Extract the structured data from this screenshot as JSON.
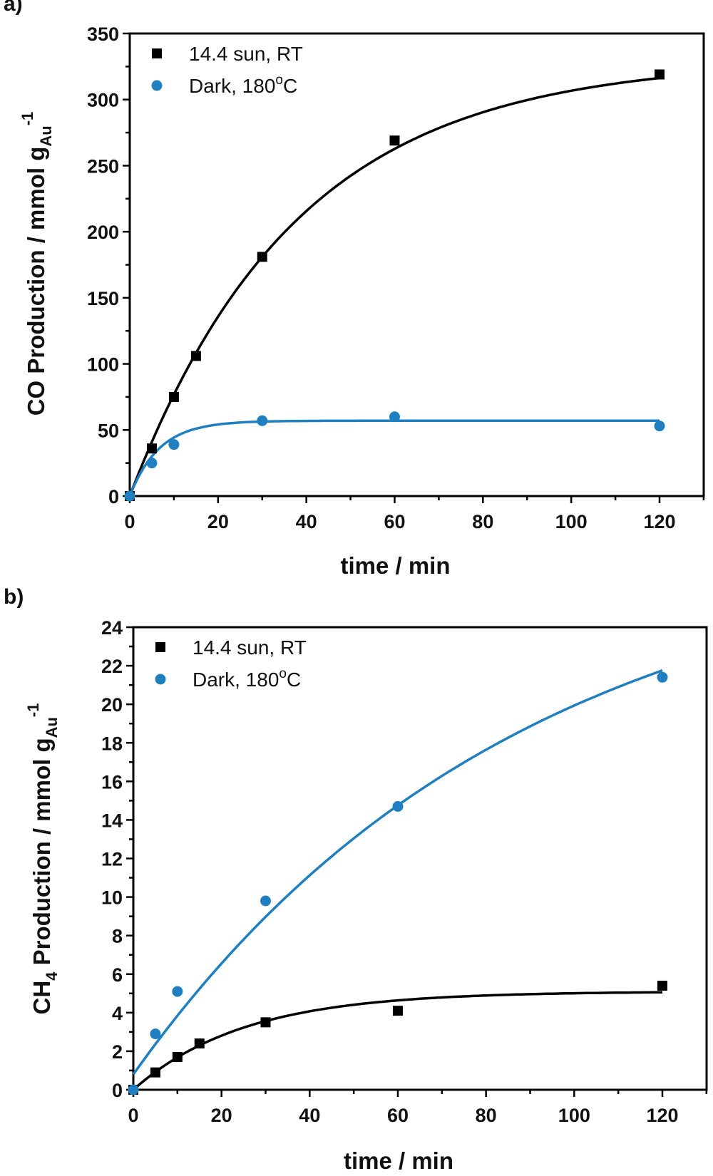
{
  "colors": {
    "light": "#000000",
    "dark": "#1f7fbf"
  },
  "chart_data": [
    {
      "panel_label": "a)",
      "type": "scatter",
      "xlabel": "time / min",
      "ylabel_main": "CO Production / mmol g",
      "ylabel_sub": "Au",
      "ylabel_sup": "-1",
      "xlim": [
        0,
        130
      ],
      "ylim": [
        0,
        350
      ],
      "xticks": [
        0,
        20,
        40,
        60,
        80,
        100,
        120
      ],
      "yticks": [
        0,
        50,
        100,
        150,
        200,
        250,
        300,
        350
      ],
      "legend_position": "top-left",
      "series": [
        {
          "name": "14.4 sun, RT",
          "marker": "square",
          "color": "#000000",
          "x": [
            0,
            5,
            10,
            15,
            30,
            60,
            120
          ],
          "y": [
            0,
            36,
            75,
            106,
            181,
            269,
            319
          ]
        },
        {
          "name": "Dark, 180oC",
          "legend_main": "Dark, 180",
          "legend_sup": "o",
          "legend_tail": "C",
          "marker": "circle",
          "color": "#1f7fbf",
          "x": [
            0,
            5,
            10,
            30,
            60,
            120
          ],
          "y": [
            0,
            25,
            39,
            57,
            60,
            53
          ]
        }
      ]
    },
    {
      "panel_label": "b)",
      "type": "scatter",
      "xlabel": "time / min",
      "ylabel_pre": "CH",
      "ylabel_pre_sub": "4",
      "ylabel_main": " Production / mmol g",
      "ylabel_sub": "Au",
      "ylabel_sup": "-1",
      "xlim": [
        0,
        130
      ],
      "ylim": [
        0,
        24
      ],
      "xticks": [
        0,
        20,
        40,
        60,
        80,
        100,
        120
      ],
      "yticks": [
        0,
        2,
        4,
        6,
        8,
        10,
        12,
        14,
        16,
        18,
        20,
        22,
        24
      ],
      "legend_position": "top-left",
      "series": [
        {
          "name": "14.4 sun, RT",
          "marker": "square",
          "color": "#000000",
          "x": [
            0,
            5,
            10,
            15,
            30,
            60,
            120
          ],
          "y": [
            0,
            0.9,
            1.7,
            2.4,
            3.5,
            4.1,
            5.4
          ]
        },
        {
          "name": "Dark, 180oC",
          "legend_main": "Dark, 180",
          "legend_sup": "o",
          "legend_tail": "C",
          "marker": "circle",
          "color": "#1f7fbf",
          "x": [
            0,
            5,
            10,
            30,
            60,
            120
          ],
          "y": [
            0,
            2.9,
            5.1,
            9.8,
            14.7,
            21.4
          ]
        }
      ]
    }
  ]
}
